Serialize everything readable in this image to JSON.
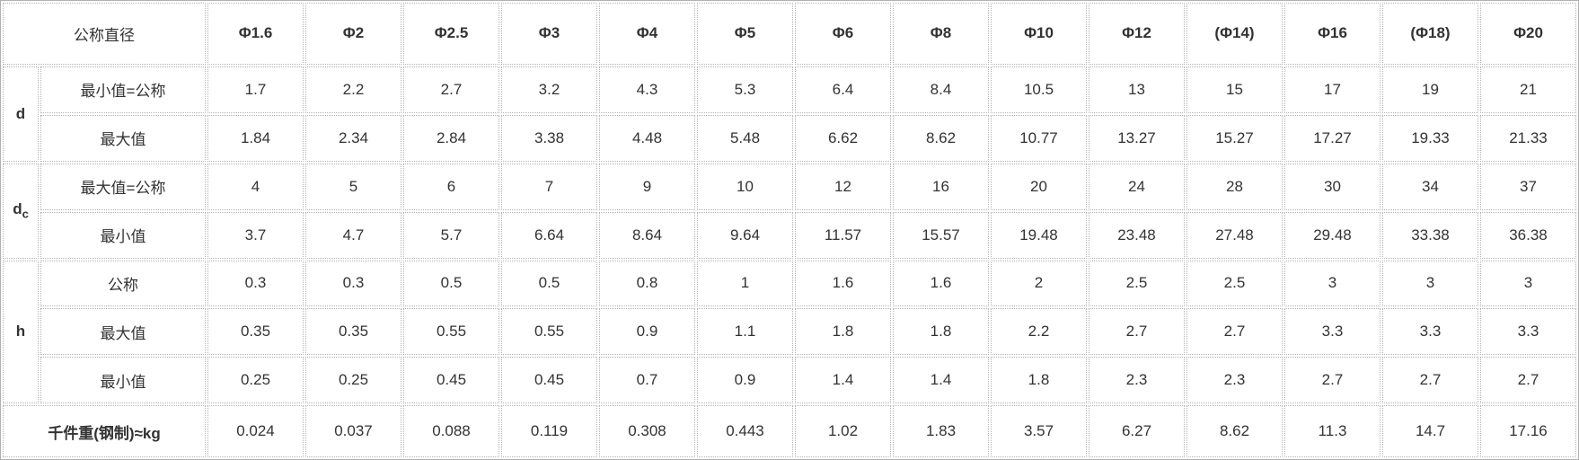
{
  "table": {
    "corner_label": "公称直径",
    "columns": [
      "Φ1.6",
      "Φ2",
      "Φ2.5",
      "Φ3",
      "Φ4",
      "Φ5",
      "Φ6",
      "Φ8",
      "Φ10",
      "Φ12",
      "(Φ14)",
      "Φ16",
      "(Φ18)",
      "Φ20"
    ],
    "sections": [
      {
        "label": "d",
        "rows": [
          {
            "label": "最小值=公称",
            "values": [
              "1.7",
              "2.2",
              "2.7",
              "3.2",
              "4.3",
              "5.3",
              "6.4",
              "8.4",
              "10.5",
              "13",
              "15",
              "17",
              "19",
              "21"
            ]
          },
          {
            "label": "最大值",
            "values": [
              "1.84",
              "2.34",
              "2.84",
              "3.38",
              "4.48",
              "5.48",
              "6.62",
              "8.62",
              "10.77",
              "13.27",
              "15.27",
              "17.27",
              "19.33",
              "21.33"
            ]
          }
        ]
      },
      {
        "label_main": "d",
        "label_sub": "c",
        "rows": [
          {
            "label": "最大值=公称",
            "values": [
              "4",
              "5",
              "6",
              "7",
              "9",
              "10",
              "12",
              "16",
              "20",
              "24",
              "28",
              "30",
              "34",
              "37"
            ]
          },
          {
            "label": "最小值",
            "values": [
              "3.7",
              "4.7",
              "5.7",
              "6.64",
              "8.64",
              "9.64",
              "11.57",
              "15.57",
              "19.48",
              "23.48",
              "27.48",
              "29.48",
              "33.38",
              "36.38"
            ]
          }
        ]
      },
      {
        "label": "h",
        "rows": [
          {
            "label": "公称",
            "values": [
              "0.3",
              "0.3",
              "0.5",
              "0.5",
              "0.8",
              "1",
              "1.6",
              "1.6",
              "2",
              "2.5",
              "2.5",
              "3",
              "3",
              "3"
            ]
          },
          {
            "label": "最大值",
            "values": [
              "0.35",
              "0.35",
              "0.55",
              "0.55",
              "0.9",
              "1.1",
              "1.8",
              "1.8",
              "2.2",
              "2.7",
              "2.7",
              "3.3",
              "3.3",
              "3.3"
            ]
          },
          {
            "label": "最小值",
            "values": [
              "0.25",
              "0.25",
              "0.45",
              "0.45",
              "0.7",
              "0.9",
              "1.4",
              "1.4",
              "1.8",
              "2.3",
              "2.3",
              "2.7",
              "2.7",
              "2.7"
            ]
          }
        ]
      }
    ],
    "footer": {
      "label": "千件重(钢制)≈kg",
      "values": [
        "0.024",
        "0.037",
        "0.088",
        "0.119",
        "0.308",
        "0.443",
        "1.02",
        "1.83",
        "3.57",
        "6.27",
        "8.62",
        "11.3",
        "14.7",
        "17.16"
      ]
    }
  },
  "colors": {
    "header_bg": "#e3e3e3",
    "label_bg": "#f2f2f2",
    "accent_blue": "#1a5cc4",
    "border_dotted": "#b3b3b3",
    "border_outer": "#b0b0b0",
    "text": "#333333"
  }
}
